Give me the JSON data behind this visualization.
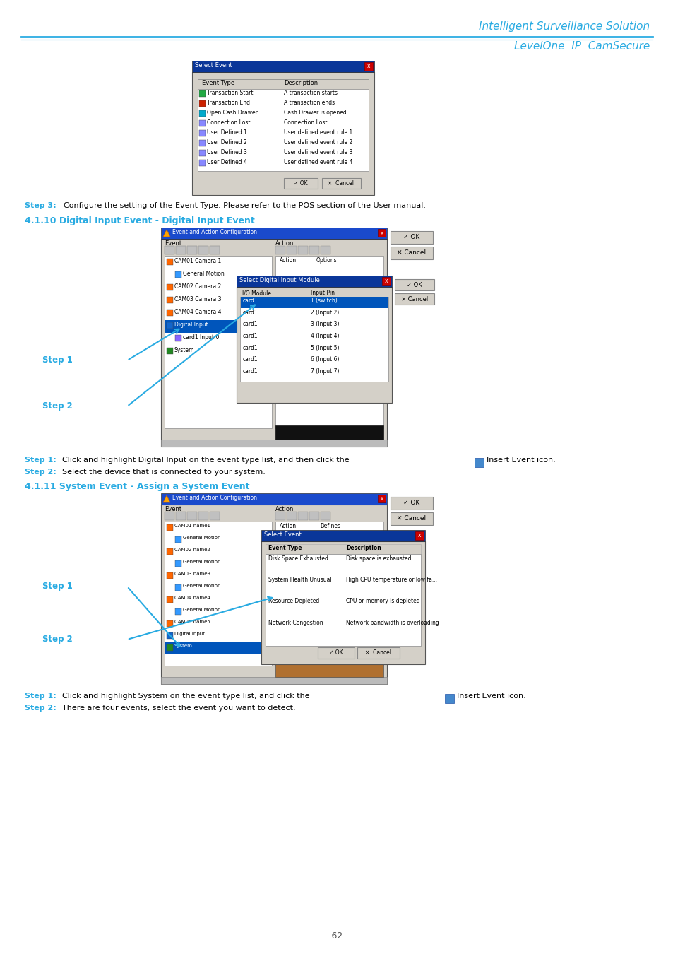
{
  "page_bg": "#ffffff",
  "header_line_color": "#29abe2",
  "header_title1": "Intelligent Surveillance Solution",
  "header_title2": "LevelOne  IP  CamSecure",
  "header_title_color": "#29abe2",
  "section_color": "#29abe2",
  "step_label_color": "#29abe2",
  "page_number": "- 62 -",
  "section1_title": "4.1.10 Digital Input Event - Digital Input Event",
  "section2_title": "4.1.11 System Event - Assign a System Event",
  "step3_text": "Configure the setting of the Event Type. Please refer to the POS section of the User manual.",
  "step1_digital_text1": "Click and highlight Digital Input on the event type list, and then click the",
  "step1_digital_text2": "Insert Event icon.",
  "step2_digital_text": "Select the device that is connected to your system.",
  "step1_system_text1": "Click and highlight System on the event type list, and click the",
  "step1_system_text2": "Insert Event icon.",
  "step2_system_text": "There are four events, select the event you want to detect."
}
